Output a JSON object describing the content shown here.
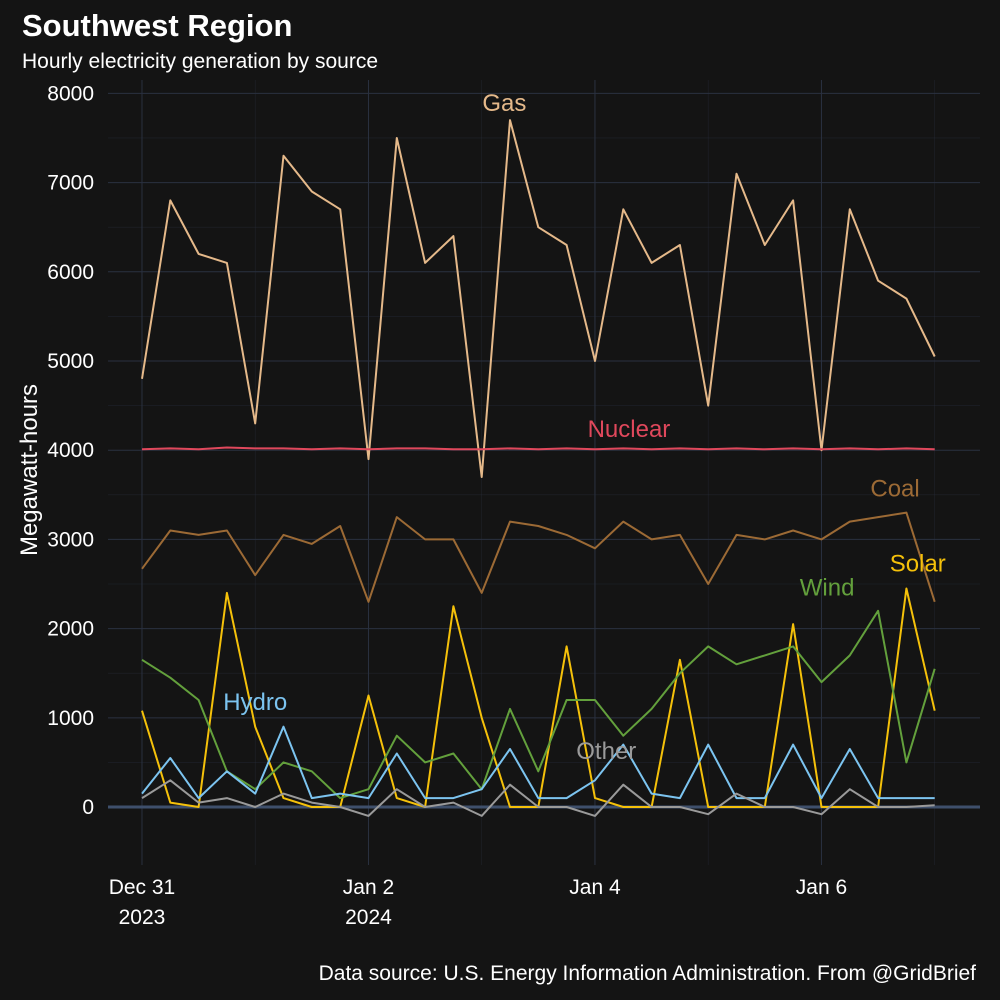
{
  "title": "Southwest Region",
  "subtitle": "Hourly electricity generation by source",
  "caption": "Data source: U.S. Energy Information Administration. From @GridBrief",
  "chart_data": {
    "type": "line",
    "title": "Southwest Region",
    "subtitle": "Hourly electricity generation by source",
    "xlabel": "",
    "ylabel": "Megawatt-hours",
    "x_unit": "day (Dec 31 2023 = 0, sampled every 6 hours)",
    "xlim": [
      -0.3,
      7.4
    ],
    "ylim": [
      -650,
      8150
    ],
    "yticks": [
      0,
      1000,
      2000,
      3000,
      4000,
      5000,
      6000,
      7000,
      8000
    ],
    "xticks": [
      {
        "value": 0,
        "line1": "Dec 31",
        "line2": "2023"
      },
      {
        "value": 2,
        "line1": "Jan 2",
        "line2": "2024"
      },
      {
        "value": 4,
        "line1": "Jan 4",
        "line2": ""
      },
      {
        "value": 6,
        "line1": "Jan 6",
        "line2": ""
      }
    ],
    "grid": true,
    "zero_line": true,
    "legend": "direct labels",
    "background": "#141414",
    "grid_color": "#2a3140",
    "x": [
      0,
      0.25,
      0.5,
      0.75,
      1,
      1.25,
      1.5,
      1.75,
      2,
      2.25,
      2.5,
      2.75,
      3,
      3.25,
      3.5,
      3.75,
      4,
      4.25,
      4.5,
      4.75,
      5,
      5.25,
      5.5,
      5.75,
      6,
      6.25,
      6.5,
      6.75,
      7
    ],
    "series": [
      {
        "name": "Gas",
        "color": "#e5b98a",
        "label_at": {
          "x": 3.2,
          "y": 7800
        },
        "values": [
          4800,
          6800,
          6200,
          6100,
          4300,
          7300,
          6900,
          6700,
          3900,
          7500,
          6100,
          6400,
          3700,
          7700,
          6500,
          6300,
          5000,
          6700,
          6100,
          6300,
          4500,
          7100,
          6300,
          6800,
          4000,
          6700,
          5900,
          5700,
          5050
        ]
      },
      {
        "name": "Nuclear",
        "color": "#e0485c",
        "label_at": {
          "x": 4.3,
          "y": 4150
        },
        "values": [
          4010,
          4020,
          4010,
          4030,
          4020,
          4020,
          4010,
          4020,
          4010,
          4020,
          4020,
          4010,
          4010,
          4020,
          4010,
          4020,
          4010,
          4020,
          4010,
          4020,
          4010,
          4020,
          4010,
          4020,
          4010,
          4020,
          4010,
          4020,
          4010
        ]
      },
      {
        "name": "Coal",
        "color": "#9c6a35",
        "label_at": {
          "x": 6.65,
          "y": 3480
        },
        "values": [
          2670,
          3100,
          3050,
          3100,
          2600,
          3050,
          2950,
          3150,
          2300,
          3250,
          3000,
          3000,
          2400,
          3200,
          3150,
          3050,
          2900,
          3200,
          3000,
          3050,
          2500,
          3050,
          3000,
          3100,
          3000,
          3200,
          3250,
          3300,
          2300
        ]
      },
      {
        "name": "Solar",
        "color": "#f5c10a",
        "label_at": {
          "x": 6.85,
          "y": 2640
        },
        "values": [
          1080,
          50,
          0,
          2400,
          900,
          100,
          0,
          0,
          1250,
          100,
          0,
          2250,
          1000,
          0,
          0,
          1800,
          100,
          0,
          0,
          1650,
          0,
          0,
          0,
          2050,
          0,
          0,
          0,
          2450,
          1080
        ]
      },
      {
        "name": "Wind",
        "color": "#63a03c",
        "label_at": {
          "x": 6.05,
          "y": 2370
        },
        "values": [
          1650,
          1450,
          1200,
          400,
          200,
          500,
          400,
          100,
          200,
          800,
          500,
          600,
          200,
          1100,
          400,
          1200,
          1200,
          800,
          1100,
          1500,
          1800,
          1600,
          1700,
          1800,
          1400,
          1700,
          2200,
          500,
          1550
        ]
      },
      {
        "name": "Hydro",
        "color": "#7cc4f0",
        "label_at": {
          "x": 1.0,
          "y": 1090
        },
        "values": [
          150,
          550,
          100,
          400,
          150,
          900,
          100,
          150,
          100,
          600,
          100,
          100,
          200,
          650,
          100,
          100,
          300,
          700,
          150,
          100,
          700,
          100,
          100,
          700,
          100,
          650,
          100,
          100,
          100
        ]
      },
      {
        "name": "Other",
        "color": "#9a9a9a",
        "label_at": {
          "x": 4.1,
          "y": 540
        },
        "values": [
          100,
          300,
          50,
          100,
          0,
          150,
          50,
          0,
          -100,
          200,
          0,
          50,
          -100,
          250,
          0,
          0,
          -100,
          250,
          0,
          0,
          -80,
          150,
          0,
          0,
          -80,
          200,
          0,
          0,
          20
        ]
      }
    ]
  }
}
